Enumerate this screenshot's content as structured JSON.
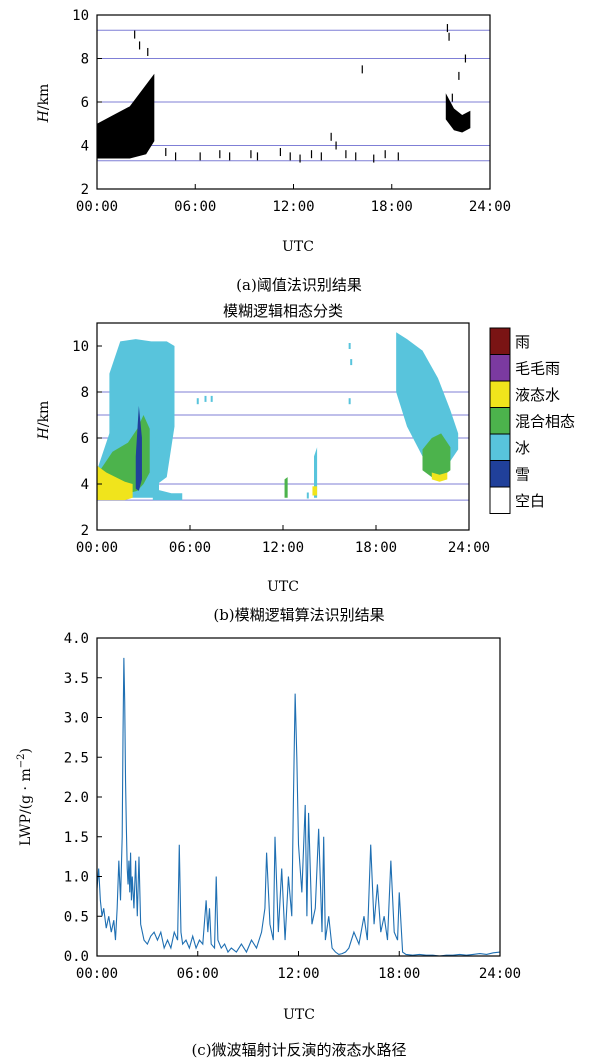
{
  "chart_data": [
    {
      "type": "scatter",
      "panel": "a",
      "caption": "(a)阈值法识别结果",
      "xlabel": "UTC",
      "ylabel_italic": "H",
      "ylabel_unit": "/km",
      "xlim": [
        0,
        24
      ],
      "ylim": [
        2,
        10
      ],
      "x_ticks": [
        "00:00",
        "06:00",
        "12:00",
        "18:00",
        "24:00"
      ],
      "y_ticks": [
        2,
        4,
        6,
        8,
        10
      ],
      "reference_lines": [
        3.3,
        4.0,
        6.0,
        8.0,
        9.3
      ],
      "colors": {
        "echo": "#000000",
        "reference_line": "#7f7fd6"
      },
      "regions": [
        {
          "name": "early-dense",
          "x": [
            0.0,
            1.0,
            2.0,
            3.0,
            3.5
          ],
          "y_bottom": [
            3.4,
            3.4,
            3.4,
            3.6,
            4.2
          ],
          "y_top": [
            5.0,
            5.4,
            5.8,
            6.8,
            7.3
          ]
        },
        {
          "name": "late-band",
          "x": [
            21.3,
            21.8,
            22.3,
            22.8
          ],
          "y_bottom": [
            5.2,
            4.7,
            4.6,
            4.8
          ],
          "y_top": [
            6.4,
            5.7,
            5.4,
            5.6
          ]
        }
      ],
      "scattered_echoes": [
        [
          2.3,
          9.1
        ],
        [
          2.6,
          8.6
        ],
        [
          3.1,
          8.3
        ],
        [
          4.2,
          3.7
        ],
        [
          4.8,
          3.5
        ],
        [
          6.3,
          3.5
        ],
        [
          7.5,
          3.6
        ],
        [
          8.1,
          3.5
        ],
        [
          9.4,
          3.6
        ],
        [
          9.8,
          3.5
        ],
        [
          11.2,
          3.7
        ],
        [
          11.8,
          3.5
        ],
        [
          12.4,
          3.4
        ],
        [
          13.1,
          3.6
        ],
        [
          13.7,
          3.5
        ],
        [
          14.3,
          4.4
        ],
        [
          14.6,
          4.0
        ],
        [
          15.2,
          3.6
        ],
        [
          15.8,
          3.5
        ],
        [
          16.2,
          7.5
        ],
        [
          16.9,
          3.4
        ],
        [
          17.6,
          3.6
        ],
        [
          18.4,
          3.5
        ],
        [
          21.4,
          9.4
        ],
        [
          21.5,
          9.0
        ],
        [
          22.5,
          8.0
        ],
        [
          22.1,
          7.2
        ],
        [
          21.7,
          6.2
        ]
      ]
    },
    {
      "type": "heatmap",
      "panel": "b",
      "title": "模糊逻辑相态分类",
      "caption": "(b)模糊逻辑算法识别结果",
      "xlabel": "UTC",
      "ylabel_italic": "H",
      "ylabel_unit": "/km",
      "xlim": [
        0,
        24
      ],
      "ylim": [
        2,
        11
      ],
      "x_ticks": [
        "00:00",
        "06:00",
        "12:00",
        "18:00",
        "24:00"
      ],
      "y_ticks": [
        2,
        4,
        6,
        8,
        10
      ],
      "reference_lines": [
        3.3,
        4.0,
        6.0,
        7.0,
        8.0
      ],
      "legend": [
        {
          "label": "雨",
          "color": "#7a1414"
        },
        {
          "label": "毛毛雨",
          "color": "#7b3aa0"
        },
        {
          "label": "液态水",
          "color": "#f0e41c"
        },
        {
          "label": "混合相态",
          "color": "#4cb34c"
        },
        {
          "label": "冰",
          "color": "#58c4dc"
        },
        {
          "label": "雪",
          "color": "#20409a"
        },
        {
          "label": "空白",
          "color": "#ffffff"
        }
      ],
      "regions": [
        {
          "class": "冰",
          "x": [
            0.8,
            1.5,
            2.5,
            3.5,
            4.5,
            5.0
          ],
          "y_bottom": [
            5.5,
            4.5,
            4.0,
            3.8,
            4.3,
            6.5
          ],
          "y_top": [
            8.8,
            10.2,
            10.3,
            10.2,
            10.2,
            10.0
          ]
        },
        {
          "class": "冰",
          "x": [
            0.0,
            0.8,
            1.6,
            2.4,
            3.2,
            4.0
          ],
          "y_bottom": [
            3.4,
            3.4,
            3.4,
            3.4,
            3.4,
            3.4
          ],
          "y_top": [
            4.6,
            6.2,
            6.8,
            7.2,
            7.4,
            5.5
          ]
        },
        {
          "class": "冰",
          "x": [
            3.6,
            4.2,
            4.8,
            5.5
          ],
          "y_bottom": [
            3.3,
            3.3,
            3.3,
            3.3
          ],
          "y_top": [
            3.8,
            3.7,
            3.6,
            3.6
          ]
        },
        {
          "class": "混合相态",
          "x": [
            0.2,
            1.0,
            2.0,
            2.6,
            3.0,
            3.4
          ],
          "y_bottom": [
            3.8,
            3.6,
            3.6,
            3.7,
            4.0,
            4.5
          ],
          "y_top": [
            4.6,
            5.4,
            5.8,
            6.4,
            7.0,
            6.4
          ]
        },
        {
          "class": "液态水",
          "x": [
            0.0,
            0.6,
            1.2,
            1.8,
            2.3
          ],
          "y_bottom": [
            3.3,
            3.3,
            3.3,
            3.3,
            3.4
          ],
          "y_top": [
            4.8,
            4.5,
            4.3,
            4.1,
            4.0
          ]
        },
        {
          "class": "雪",
          "x": [
            2.5,
            2.7,
            2.9
          ],
          "y_bottom": [
            3.8,
            3.7,
            4.2
          ],
          "y_top": [
            5.2,
            7.4,
            6.0
          ]
        },
        {
          "class": "冰",
          "x": [
            19.3,
            20.0,
            21.0,
            22.0,
            22.8,
            23.3
          ],
          "y_bottom": [
            8.0,
            6.5,
            5.2,
            4.8,
            5.0,
            5.5
          ],
          "y_top": [
            10.6,
            10.3,
            9.8,
            8.6,
            7.2,
            6.2
          ]
        },
        {
          "class": "混合相态",
          "x": [
            21.0,
            21.6,
            22.2,
            22.8
          ],
          "y_bottom": [
            4.6,
            4.3,
            4.3,
            4.6
          ],
          "y_top": [
            5.5,
            6.0,
            6.2,
            5.6
          ]
        },
        {
          "class": "液态水",
          "x": [
            21.6,
            22.1,
            22.6
          ],
          "y_bottom": [
            4.2,
            4.1,
            4.2
          ],
          "y_top": [
            4.5,
            4.4,
            4.5
          ]
        },
        {
          "class": "冰",
          "x": [
            14.0,
            14.2
          ],
          "y_bottom": [
            3.4,
            3.4
          ],
          "y_top": [
            5.2,
            5.6
          ]
        },
        {
          "class": "混合相态",
          "x": [
            12.1,
            12.3
          ],
          "y_bottom": [
            3.4,
            3.4
          ],
          "y_top": [
            4.2,
            4.3
          ]
        },
        {
          "class": "液态水",
          "x": [
            13.9,
            14.2
          ],
          "y_bottom": [
            3.5,
            3.5
          ],
          "y_top": [
            3.9,
            3.9
          ]
        }
      ],
      "scattered_echoes": [
        [
          6.5,
          7.6
        ],
        [
          7.0,
          7.7
        ],
        [
          7.4,
          7.7
        ],
        [
          16.3,
          7.6
        ],
        [
          16.4,
          9.3
        ],
        [
          16.3,
          10.0
        ],
        [
          13.6,
          3.5
        ]
      ]
    },
    {
      "type": "line",
      "panel": "c",
      "caption": "(c)微波辐射计反演的液态水路径",
      "xlabel": "UTC",
      "ylabel": "LWP/(g·m⁻²)",
      "ylabel_prefix": "LWP/(g · m",
      "ylabel_exp": "−2",
      "ylabel_suffix": ")",
      "xlim": [
        0,
        24
      ],
      "ylim": [
        0,
        4
      ],
      "x_ticks": [
        "00:00",
        "06:00",
        "12:00",
        "18:00",
        "24:00"
      ],
      "y_ticks": [
        "0.0",
        "0.5",
        "1.0",
        "1.5",
        "2.0",
        "2.5",
        "3.0",
        "3.5",
        "4.0"
      ],
      "series": [
        {
          "color": "#1f6fb2",
          "x": [
            0.0,
            0.1,
            0.2,
            0.3,
            0.4,
            0.55,
            0.7,
            0.85,
            1.0,
            1.1,
            1.2,
            1.3,
            1.4,
            1.5,
            1.55,
            1.6,
            1.65,
            1.7,
            1.75,
            1.8,
            1.85,
            1.9,
            1.95,
            2.0,
            2.05,
            2.1,
            2.2,
            2.3,
            2.4,
            2.5,
            2.6,
            2.7,
            2.8,
            3.0,
            3.2,
            3.4,
            3.6,
            3.8,
            4.0,
            4.2,
            4.4,
            4.6,
            4.8,
            4.9,
            5.0,
            5.1,
            5.3,
            5.5,
            5.7,
            5.9,
            6.1,
            6.3,
            6.5,
            6.6,
            6.7,
            6.8,
            7.0,
            7.1,
            7.2,
            7.4,
            7.6,
            7.8,
            8.0,
            8.3,
            8.6,
            8.9,
            9.2,
            9.5,
            9.8,
            10.0,
            10.1,
            10.3,
            10.5,
            10.6,
            10.8,
            11.0,
            11.2,
            11.4,
            11.6,
            11.7,
            11.8,
            11.9,
            12.0,
            12.2,
            12.4,
            12.5,
            12.6,
            12.8,
            13.0,
            13.2,
            13.4,
            13.5,
            13.6,
            13.8,
            14.0,
            14.2,
            14.4,
            14.6,
            14.8,
            15.0,
            15.3,
            15.6,
            15.9,
            16.1,
            16.3,
            16.5,
            16.7,
            16.9,
            17.1,
            17.3,
            17.5,
            17.7,
            17.9,
            18.0,
            18.2,
            18.4,
            18.8,
            19.2,
            19.6,
            20.0,
            20.4,
            20.8,
            21.2,
            21.6,
            22.0,
            22.4,
            22.8,
            23.2,
            23.6,
            24.0
          ],
          "y": [
            0.85,
            1.1,
            0.7,
            0.5,
            0.6,
            0.35,
            0.5,
            0.3,
            0.45,
            0.2,
            0.6,
            1.2,
            0.7,
            1.5,
            2.8,
            3.75,
            3.2,
            2.2,
            1.6,
            1.1,
            0.9,
            1.2,
            0.8,
            1.3,
            0.7,
            1.0,
            0.6,
            1.2,
            0.5,
            1.25,
            0.4,
            0.3,
            0.2,
            0.15,
            0.25,
            0.3,
            0.2,
            0.3,
            0.1,
            0.2,
            0.1,
            0.3,
            0.2,
            1.4,
            0.3,
            0.15,
            0.2,
            0.1,
            0.25,
            0.1,
            0.2,
            0.15,
            0.7,
            0.3,
            0.6,
            0.15,
            0.1,
            1.0,
            0.2,
            0.1,
            0.15,
            0.05,
            0.1,
            0.05,
            0.15,
            0.05,
            0.2,
            0.1,
            0.3,
            0.6,
            1.3,
            0.4,
            0.2,
            1.5,
            0.3,
            1.1,
            0.2,
            1.0,
            0.5,
            2.0,
            3.3,
            2.5,
            1.4,
            0.8,
            1.9,
            0.5,
            1.8,
            0.4,
            0.6,
            1.6,
            0.3,
            1.5,
            0.2,
            0.5,
            0.1,
            0.05,
            0.02,
            0.03,
            0.05,
            0.1,
            0.3,
            0.15,
            0.5,
            0.2,
            1.4,
            0.4,
            0.9,
            0.3,
            0.5,
            0.2,
            1.2,
            0.3,
            0.2,
            0.8,
            0.05,
            0.02,
            0.01,
            0.02,
            0.01,
            0.01,
            0.0,
            0.01,
            0.01,
            0.02,
            0.01,
            0.02,
            0.03,
            0.02,
            0.04,
            0.05
          ]
        }
      ]
    }
  ]
}
